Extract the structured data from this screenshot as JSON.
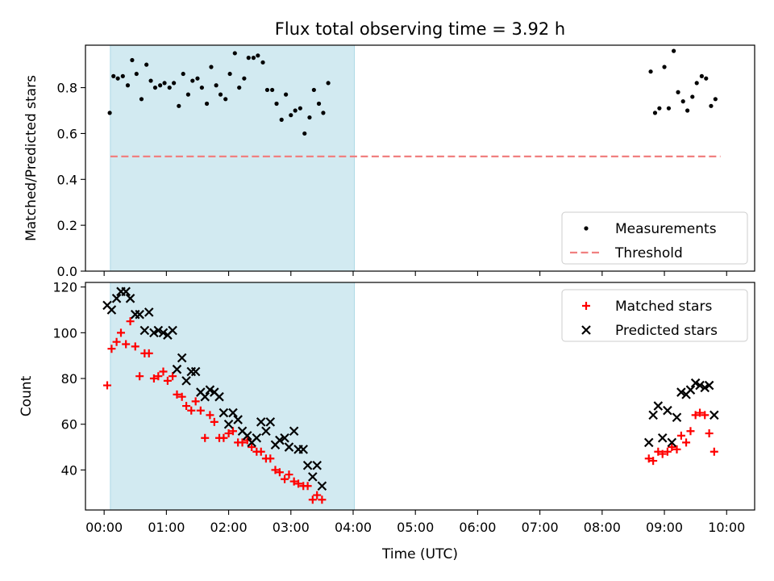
{
  "title": "Flux total observing time = 3.92 h",
  "colors": {
    "highlight": "#add8e6",
    "measurements": "#000000",
    "threshold": "#f08080",
    "matched": "#ff0000",
    "predicted": "#000000"
  },
  "chart_data": [
    {
      "type": "scatter",
      "ylabel": "Matched/Predicted stars",
      "xlim": [
        -0.3,
        10.45
      ],
      "ylim": [
        0.0,
        0.985
      ],
      "yticks": [
        0.0,
        0.2,
        0.4,
        0.6,
        0.8
      ],
      "ytick_labels": [
        "0.0",
        "0.2",
        "0.4",
        "0.6",
        "0.8"
      ],
      "shaded_interval": [
        0.1,
        4.02
      ],
      "legend": {
        "placement": "lower-right",
        "entries": [
          "Measurements",
          "Threshold"
        ]
      },
      "series": [
        {
          "name": "Measurements",
          "marker": "dot",
          "points": [
            [
              0.09,
              0.69
            ],
            [
              0.15,
              0.85
            ],
            [
              0.22,
              0.84
            ],
            [
              0.3,
              0.85
            ],
            [
              0.38,
              0.81
            ],
            [
              0.45,
              0.92
            ],
            [
              0.52,
              0.86
            ],
            [
              0.6,
              0.75
            ],
            [
              0.68,
              0.9
            ],
            [
              0.75,
              0.83
            ],
            [
              0.82,
              0.8
            ],
            [
              0.9,
              0.81
            ],
            [
              0.97,
              0.82
            ],
            [
              1.05,
              0.8
            ],
            [
              1.12,
              0.82
            ],
            [
              1.2,
              0.72
            ],
            [
              1.27,
              0.86
            ],
            [
              1.35,
              0.77
            ],
            [
              1.42,
              0.83
            ],
            [
              1.5,
              0.84
            ],
            [
              1.57,
              0.8
            ],
            [
              1.65,
              0.73
            ],
            [
              1.72,
              0.89
            ],
            [
              1.8,
              0.81
            ],
            [
              1.87,
              0.77
            ],
            [
              1.95,
              0.75
            ],
            [
              2.02,
              0.86
            ],
            [
              2.1,
              0.95
            ],
            [
              2.17,
              0.8
            ],
            [
              2.25,
              0.84
            ],
            [
              2.32,
              0.93
            ],
            [
              2.4,
              0.93
            ],
            [
              2.47,
              0.94
            ],
            [
              2.55,
              0.91
            ],
            [
              2.62,
              0.79
            ],
            [
              2.7,
              0.79
            ],
            [
              2.77,
              0.73
            ],
            [
              2.85,
              0.66
            ],
            [
              2.92,
              0.77
            ],
            [
              3.0,
              0.68
            ],
            [
              3.07,
              0.7
            ],
            [
              3.15,
              0.71
            ],
            [
              3.22,
              0.6
            ],
            [
              3.3,
              0.67
            ],
            [
              3.37,
              0.79
            ],
            [
              3.45,
              0.73
            ],
            [
              3.52,
              0.69
            ],
            [
              3.6,
              0.82
            ],
            [
              8.78,
              0.87
            ],
            [
              8.85,
              0.69
            ],
            [
              8.92,
              0.71
            ],
            [
              9.0,
              0.89
            ],
            [
              9.07,
              0.71
            ],
            [
              9.15,
              0.96
            ],
            [
              9.22,
              0.78
            ],
            [
              9.3,
              0.74
            ],
            [
              9.37,
              0.7
            ],
            [
              9.45,
              0.76
            ],
            [
              9.52,
              0.82
            ],
            [
              9.6,
              0.85
            ],
            [
              9.67,
              0.84
            ],
            [
              9.75,
              0.72
            ],
            [
              9.82,
              0.75
            ]
          ]
        },
        {
          "name": "Threshold",
          "type": "line",
          "style": "dashed",
          "x": [
            0.1,
            9.9
          ],
          "y": [
            0.5,
            0.5
          ]
        }
      ]
    },
    {
      "type": "scatter",
      "xlabel": "Time (UTC)",
      "ylabel": "Count",
      "xlim": [
        -0.3,
        10.45
      ],
      "ylim": [
        22.5,
        122
      ],
      "xticks": [
        0,
        1,
        2,
        3,
        4,
        5,
        6,
        7,
        8,
        9,
        10
      ],
      "xtick_labels": [
        "00:00",
        "01:00",
        "02:00",
        "03:00",
        "04:00",
        "05:00",
        "06:00",
        "07:00",
        "08:00",
        "09:00",
        "10:00"
      ],
      "yticks": [
        40,
        60,
        80,
        100,
        120
      ],
      "ytick_labels": [
        "40",
        "60",
        "80",
        "100",
        "120"
      ],
      "shaded_interval": [
        0.1,
        4.02
      ],
      "legend": {
        "placement": "upper-right",
        "entries": [
          "Matched stars",
          "Predicted stars"
        ]
      },
      "series": [
        {
          "name": "Matched stars",
          "marker": "plus",
          "points": [
            [
              0.05,
              77
            ],
            [
              0.12,
              93
            ],
            [
              0.2,
              96
            ],
            [
              0.27,
              100
            ],
            [
              0.35,
              95
            ],
            [
              0.42,
              105
            ],
            [
              0.5,
              94
            ],
            [
              0.57,
              81
            ],
            [
              0.65,
              91
            ],
            [
              0.72,
              91
            ],
            [
              0.8,
              80
            ],
            [
              0.87,
              81
            ],
            [
              0.95,
              83
            ],
            [
              1.02,
              79
            ],
            [
              1.1,
              81
            ],
            [
              1.17,
              73
            ],
            [
              1.25,
              72
            ],
            [
              1.32,
              68
            ],
            [
              1.4,
              66
            ],
            [
              1.47,
              70
            ],
            [
              1.55,
              66
            ],
            [
              1.62,
              54
            ],
            [
              1.7,
              64
            ],
            [
              1.77,
              61
            ],
            [
              1.85,
              54
            ],
            [
              1.92,
              54
            ],
            [
              2.0,
              56
            ],
            [
              2.07,
              57
            ],
            [
              2.15,
              52
            ],
            [
              2.22,
              52
            ],
            [
              2.3,
              53
            ],
            [
              2.37,
              50
            ],
            [
              2.45,
              48
            ],
            [
              2.52,
              48
            ],
            [
              2.6,
              45
            ],
            [
              2.67,
              45
            ],
            [
              2.75,
              40
            ],
            [
              2.82,
              39
            ],
            [
              2.9,
              36
            ],
            [
              2.97,
              38
            ],
            [
              3.05,
              35
            ],
            [
              3.12,
              34
            ],
            [
              3.2,
              33
            ],
            [
              3.27,
              33
            ],
            [
              3.35,
              27
            ],
            [
              3.42,
              29
            ],
            [
              3.5,
              27
            ],
            [
              8.75,
              45
            ],
            [
              8.82,
              44
            ],
            [
              8.9,
              48
            ],
            [
              8.97,
              47
            ],
            [
              9.05,
              48
            ],
            [
              9.12,
              50
            ],
            [
              9.2,
              49
            ],
            [
              9.27,
              55
            ],
            [
              9.35,
              52
            ],
            [
              9.42,
              57
            ],
            [
              9.5,
              64
            ],
            [
              9.57,
              65
            ],
            [
              9.65,
              64
            ],
            [
              9.72,
              56
            ],
            [
              9.8,
              48
            ]
          ]
        },
        {
          "name": "Predicted stars",
          "marker": "x",
          "points": [
            [
              0.05,
              112
            ],
            [
              0.12,
              110
            ],
            [
              0.2,
              115
            ],
            [
              0.27,
              118
            ],
            [
              0.35,
              118
            ],
            [
              0.42,
              115
            ],
            [
              0.5,
              108
            ],
            [
              0.57,
              108
            ],
            [
              0.65,
              101
            ],
            [
              0.72,
              109
            ],
            [
              0.8,
              100
            ],
            [
              0.87,
              101
            ],
            [
              0.95,
              100
            ],
            [
              1.02,
              99
            ],
            [
              1.1,
              101
            ],
            [
              1.17,
              84
            ],
            [
              1.25,
              89
            ],
            [
              1.32,
              79
            ],
            [
              1.4,
              83
            ],
            [
              1.47,
              83
            ],
            [
              1.55,
              74
            ],
            [
              1.62,
              72
            ],
            [
              1.7,
              75
            ],
            [
              1.77,
              74
            ],
            [
              1.85,
              72
            ],
            [
              1.92,
              65
            ],
            [
              2.0,
              60
            ],
            [
              2.07,
              65
            ],
            [
              2.15,
              62
            ],
            [
              2.22,
              57
            ],
            [
              2.3,
              55
            ],
            [
              2.37,
              52
            ],
            [
              2.45,
              54
            ],
            [
              2.52,
              61
            ],
            [
              2.6,
              57
            ],
            [
              2.67,
              61
            ],
            [
              2.75,
              51
            ],
            [
              2.82,
              53
            ],
            [
              2.9,
              54
            ],
            [
              2.97,
              50
            ],
            [
              3.05,
              57
            ],
            [
              3.12,
              49
            ],
            [
              3.2,
              49
            ],
            [
              3.27,
              42
            ],
            [
              3.35,
              37
            ],
            [
              3.42,
              42
            ],
            [
              3.5,
              33
            ],
            [
              8.75,
              52
            ],
            [
              8.82,
              64
            ],
            [
              8.9,
              68
            ],
            [
              8.97,
              54
            ],
            [
              9.05,
              66
            ],
            [
              9.12,
              52
            ],
            [
              9.2,
              63
            ],
            [
              9.27,
              74
            ],
            [
              9.35,
              73
            ],
            [
              9.42,
              75
            ],
            [
              9.5,
              78
            ],
            [
              9.57,
              77
            ],
            [
              9.65,
              76
            ],
            [
              9.72,
              77
            ],
            [
              9.8,
              64
            ]
          ]
        }
      ]
    }
  ]
}
